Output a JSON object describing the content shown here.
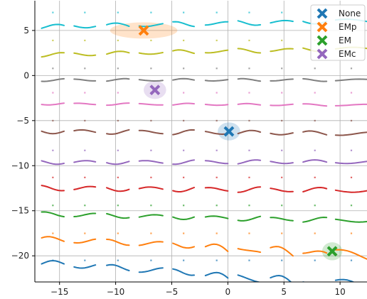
{
  "chart_data": {
    "type": "line",
    "xlim": [
      -17.2,
      12.4
    ],
    "ylim": [
      -22.9,
      8.3
    ],
    "grid": true,
    "legend_placement": "top-right",
    "x_ticks": [
      -15,
      -10,
      -5,
      0,
      5,
      10
    ],
    "x_tick_labels": [
      "−15",
      "−10",
      "−5",
      "0",
      "5",
      "10"
    ],
    "y_ticks": [
      -20,
      -15,
      -10,
      -5,
      0,
      5
    ],
    "y_tick_labels": [
      "−20",
      "−15",
      "−10",
      "−5",
      "0",
      "5"
    ],
    "series_colors": [
      "#1f77b4",
      "#ff7f0e",
      "#2ca02c",
      "#d62728",
      "#9467bd",
      "#8c564b",
      "#e377c2",
      "#7f7f7f",
      "#bcbd22",
      "#17becf"
    ],
    "rows": [
      {
        "color": "#1f77b4",
        "y": -21.8,
        "drift": -0.15,
        "amp": 0.6
      },
      {
        "color": "#ff7f0e",
        "y": -18.8,
        "drift": -0.1,
        "amp": 0.55
      },
      {
        "color": "#2ca02c",
        "y": -15.7,
        "drift": -0.05,
        "amp": 0.45
      },
      {
        "color": "#d62728",
        "y": -12.6,
        "drift": -0.02,
        "amp": 0.5
      },
      {
        "color": "#9467bd",
        "y": -9.6,
        "drift": 0.0,
        "amp": 0.4
      },
      {
        "color": "#8c564b",
        "y": -6.3,
        "drift": -0.02,
        "amp": 0.45
      },
      {
        "color": "#e377c2",
        "y": -3.2,
        "drift": -0.01,
        "amp": 0.2
      },
      {
        "color": "#7f7f7f",
        "y": -0.5,
        "drift": 0.0,
        "amp": 0.25
      },
      {
        "color": "#bcbd22",
        "y": 2.6,
        "drift": 0.05,
        "amp": 0.4
      },
      {
        "color": "#17becf",
        "y": 5.7,
        "drift": 0.05,
        "amp": 0.45
      }
    ],
    "segments_x": [
      [
        -16.6,
        -14.6
      ],
      [
        -13.7,
        -11.8
      ],
      [
        -10.8,
        -8.8
      ],
      [
        -7.9,
        -5.8
      ],
      [
        -4.9,
        -3.0
      ],
      [
        -2.0,
        0.0
      ],
      [
        0.9,
        2.9
      ],
      [
        3.8,
        5.8
      ],
      [
        6.7,
        8.8
      ],
      [
        9.6,
        12.4
      ]
    ],
    "legend": [
      {
        "label": "None",
        "color": "#1f77b4"
      },
      {
        "label": "EMp",
        "color": "#ff7f0e"
      },
      {
        "label": "EM",
        "color": "#2ca02c"
      },
      {
        "label": "EMc",
        "color": "#9467bd"
      }
    ],
    "markers": [
      {
        "name": "None",
        "x": 0.1,
        "y": -6.2,
        "color": "#1f77b4",
        "hl_rx": 1.0,
        "hl_ry": 1.0
      },
      {
        "name": "EMp",
        "x": -7.5,
        "y": 5.0,
        "color": "#ff7f0e",
        "hl_rx": 3.0,
        "hl_ry": 0.9
      },
      {
        "name": "EM",
        "x": 9.3,
        "y": -19.5,
        "color": "#2ca02c",
        "hl_rx": 0.9,
        "hl_ry": 1.0
      },
      {
        "name": "EMc",
        "x": -6.5,
        "y": -1.6,
        "color": "#9467bd",
        "hl_rx": 1.0,
        "hl_ry": 1.0
      }
    ]
  }
}
